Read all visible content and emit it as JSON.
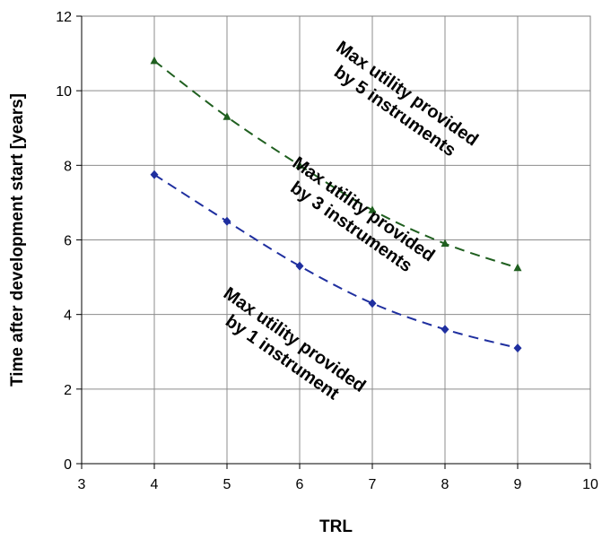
{
  "chart_data": {
    "type": "line",
    "title": "",
    "xlabel": "TRL",
    "ylabel": "Time after development start [years]",
    "xlim": [
      3,
      10
    ],
    "ylim": [
      0,
      12
    ],
    "x_ticks": [
      "3",
      "4",
      "5",
      "6",
      "7",
      "8",
      "9",
      "10"
    ],
    "y_ticks": [
      "0",
      "2",
      "4",
      "6",
      "8",
      "10",
      "12"
    ],
    "grid": true,
    "legend": "none",
    "series": [
      {
        "x": [
          4,
          5,
          6,
          7,
          8,
          9
        ],
        "values": [
          10.8,
          9.3,
          8.0,
          6.8,
          5.9,
          5.25
        ],
        "color": "#1f5f1f",
        "marker": "triangle",
        "line_style": "dashed"
      },
      {
        "x": [
          4,
          5,
          6,
          7,
          8,
          9
        ],
        "values": [
          7.75,
          6.5,
          5.3,
          4.3,
          3.6,
          3.1
        ],
        "color": "#1f2f9f",
        "marker": "diamond",
        "line_style": "dashed"
      }
    ],
    "annotations": [
      {
        "lines": [
          "Max utility provided",
          "by 5 instruments"
        ],
        "x": 7.4,
        "y": 9.7,
        "rotation": 35
      },
      {
        "lines": [
          "Max utility provided",
          "by 3 instruments"
        ],
        "x": 6.8,
        "y": 6.6,
        "rotation": 35
      },
      {
        "lines": [
          "Max utility provided",
          "by 1 instrument"
        ],
        "x": 5.85,
        "y": 3.1,
        "rotation": 35
      }
    ]
  }
}
